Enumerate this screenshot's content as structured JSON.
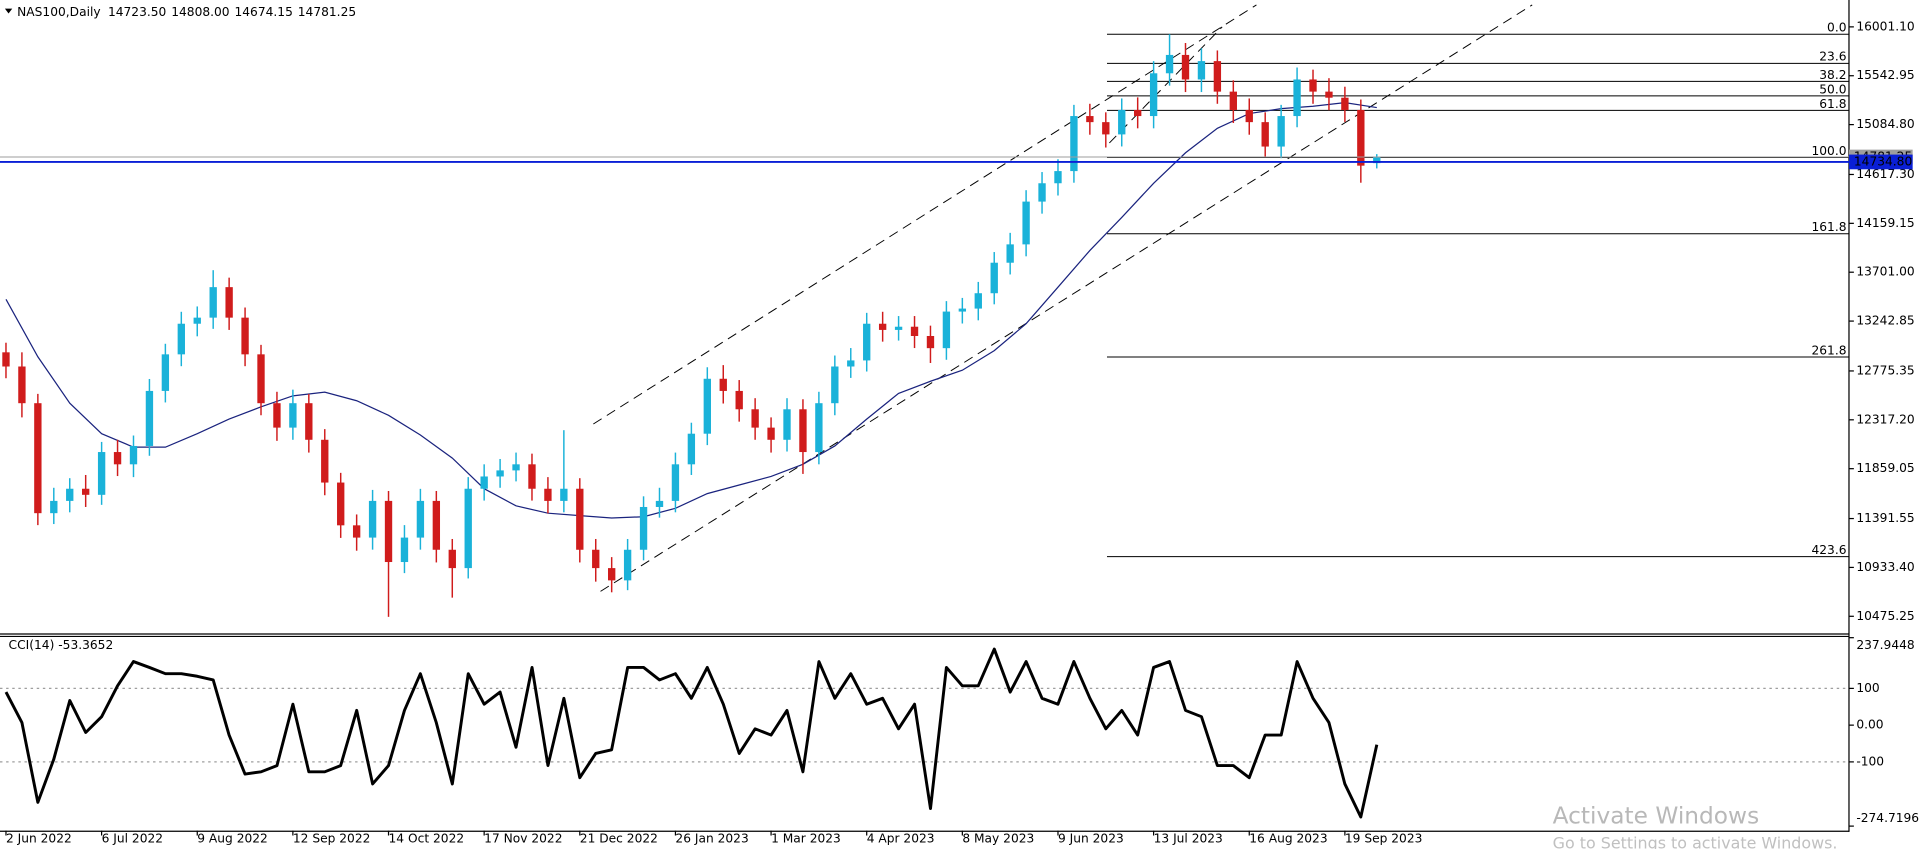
{
  "chart_data": {
    "type": "candlestick",
    "title": "NAS100,Daily",
    "header_values": [
      "14723.50",
      "14808.00",
      "14674.15",
      "14781.25"
    ],
    "x": [
      0,
      4,
      8,
      12,
      16,
      20,
      24,
      28,
      32,
      36,
      40,
      44,
      48,
      52,
      56,
      60,
      64,
      68,
      72,
      76,
      80,
      84,
      88,
      92,
      96,
      100,
      104,
      108,
      112,
      116,
      120,
      124,
      128,
      132,
      136,
      140,
      144,
      148,
      152,
      156,
      160,
      164,
      168,
      172,
      176,
      180,
      184,
      188,
      192,
      196,
      200,
      204,
      208,
      212,
      216,
      220,
      224,
      228,
      232,
      236,
      240,
      244,
      248,
      252,
      256,
      260,
      264,
      268,
      272,
      276,
      280,
      284,
      288,
      292,
      296,
      300,
      304,
      308,
      312,
      316,
      320,
      324,
      328,
      332,
      336,
      340,
      344
    ],
    "open": [
      12950,
      12817,
      12473,
      11442,
      11557,
      11671,
      11614,
      12015,
      11900,
      12072,
      12588,
      12931,
      13218,
      13275,
      13561,
      13275,
      12931,
      12473,
      12244,
      12473,
      12130,
      11729,
      11328,
      11213,
      11557,
      10984,
      11213,
      11557,
      11099,
      10927,
      11671,
      11786,
      11843,
      11900,
      11671,
      11557,
      11671,
      11099,
      10927,
      10812,
      11099,
      11500,
      11557,
      11900,
      12187,
      12702,
      12588,
      12416,
      12244,
      12130,
      12416,
      12015,
      12473,
      12817,
      12874,
      13218,
      13160,
      13190,
      13103,
      12989,
      13332,
      13360,
      13504,
      13790,
      13962,
      14363,
      14535,
      14649,
      15165,
      15108,
      14993,
      15222,
      15165,
      15566,
      15738,
      15508,
      15680,
      15394,
      15222,
      15108,
      14879,
      15165,
      15508,
      15394,
      15337,
      15222,
      14723.5
    ],
    "high": [
      13040,
      12950,
      12560,
      11680,
      11770,
      11800,
      12110,
      12130,
      12170,
      12700,
      13030,
      13330,
      13380,
      13720,
      13650,
      13370,
      13020,
      12580,
      12600,
      12560,
      12230,
      11820,
      11430,
      11660,
      11650,
      11330,
      11670,
      11650,
      11200,
      11780,
      11900,
      11950,
      12010,
      12000,
      11780,
      12220,
      11770,
      11200,
      11030,
      11200,
      11600,
      11680,
      12010,
      12290,
      12810,
      12830,
      12690,
      12520,
      12340,
      12520,
      12510,
      12580,
      12920,
      12990,
      13320,
      13330,
      13290,
      13290,
      13200,
      13430,
      13460,
      13610,
      13890,
      14070,
      14470,
      14640,
      14760,
      15270,
      15280,
      15200,
      15330,
      15340,
      15680,
      15932,
      15850,
      15800,
      15780,
      15500,
      15330,
      15200,
      15270,
      15620,
      15600,
      15520,
      15440,
      15320,
      14808
    ],
    "low": [
      12707,
      12340,
      11330,
      11340,
      11450,
      11500,
      11520,
      11790,
      11780,
      11980,
      12480,
      12820,
      13100,
      13170,
      13160,
      12820,
      12360,
      12120,
      12130,
      12010,
      11610,
      11210,
      11090,
      11100,
      10470,
      10880,
      11100,
      10980,
      10650,
      10830,
      11560,
      11680,
      11740,
      11560,
      11440,
      11450,
      10980,
      10800,
      10700,
      10720,
      11000,
      11400,
      11450,
      11800,
      12080,
      12470,
      12300,
      12130,
      12010,
      12020,
      11810,
      11900,
      12360,
      12710,
      12770,
      13050,
      13060,
      12990,
      12850,
      12880,
      13220,
      13250,
      13400,
      13680,
      13850,
      14250,
      14420,
      14540,
      14990,
      14870,
      14880,
      15050,
      15050,
      15450,
      15390,
      15390,
      15280,
      15100,
      14990,
      14776,
      14770,
      15060,
      15280,
      15220,
      15110,
      14540,
      14674.15
    ],
    "close": [
      12817,
      12473,
      11442,
      11557,
      11671,
      11614,
      12015,
      11900,
      12072,
      12588,
      12931,
      13218,
      13275,
      13561,
      13275,
      12931,
      12473,
      12244,
      12473,
      12130,
      11729,
      11328,
      11213,
      11557,
      10984,
      11213,
      11557,
      11099,
      10927,
      11671,
      11786,
      11843,
      11900,
      11671,
      11557,
      11671,
      11099,
      10927,
      10812,
      11099,
      11500,
      11557,
      11900,
      12187,
      12702,
      12588,
      12416,
      12244,
      12130,
      12416,
      12015,
      12473,
      12817,
      12874,
      13218,
      13160,
      13190,
      13103,
      12989,
      13332,
      13360,
      13504,
      13790,
      13962,
      14363,
      14535,
      14649,
      15165,
      15108,
      14993,
      15222,
      15165,
      15566,
      15738,
      15508,
      15680,
      15394,
      15222,
      15108,
      14879,
      15165,
      15508,
      15394,
      15337,
      15222,
      14700,
      14781.25
    ],
    "up_color": "#1ab2d9",
    "down_color": "#d01c1c",
    "xlim": [
      -1.5,
      462.5
    ],
    "xticks": [
      {
        "value": 0,
        "label": "2 Jun 2022"
      },
      {
        "value": 24,
        "label": "6 Jul 2022"
      },
      {
        "value": 48,
        "label": "9 Aug 2022"
      },
      {
        "value": 72,
        "label": "12 Sep 2022"
      },
      {
        "value": 96,
        "label": "14 Oct 2022"
      },
      {
        "value": 120,
        "label": "17 Nov 2022"
      },
      {
        "value": 144,
        "label": "21 Dec 2022"
      },
      {
        "value": 168,
        "label": "26 Jan 2023"
      },
      {
        "value": 192,
        "label": "1 Mar 2023"
      },
      {
        "value": 216,
        "label": "4 Apr 2023"
      },
      {
        "value": 240,
        "label": "8 May 2023"
      },
      {
        "value": 264,
        "label": "9 Jun 2023"
      },
      {
        "value": 288,
        "label": "13 Jul 2023"
      },
      {
        "value": 312,
        "label": "16 Aug 2023"
      },
      {
        "value": 336,
        "label": "19 Sep 2023"
      }
    ],
    "ylim": [
      10315,
      16253
    ],
    "yticks": [
      {
        "value": 16001.1,
        "label": "16001.10"
      },
      {
        "value": 15542.95,
        "label": "15542.95"
      },
      {
        "value": 15084.8,
        "label": "15084.80"
      },
      {
        "value": 14617.3,
        "label": "14617.30"
      },
      {
        "value": 14159.15,
        "label": "14159.15"
      },
      {
        "value": 13701,
        "label": "13701.00"
      },
      {
        "value": 13242.85,
        "label": "13242.85"
      },
      {
        "value": 12775.35,
        "label": "12775.35"
      },
      {
        "value": 12317.2,
        "label": "12317.20"
      },
      {
        "value": 11859.05,
        "label": "11859.05"
      },
      {
        "value": 11391.55,
        "label": "11391.55"
      },
      {
        "value": 10933.4,
        "label": "10933.40"
      },
      {
        "value": 10475.25,
        "label": "10475.25"
      }
    ],
    "moving_average": {
      "color": "#1a237e",
      "x": [
        0,
        8,
        16,
        24,
        32,
        40,
        48,
        56,
        64,
        72,
        80,
        88,
        96,
        104,
        112,
        120,
        128,
        136,
        144,
        152,
        160,
        168,
        176,
        184,
        192,
        200,
        208,
        216,
        224,
        232,
        240,
        248,
        256,
        264,
        272,
        280,
        288,
        296,
        304,
        312,
        320,
        328,
        336,
        344
      ],
      "values": [
        13447,
        12908,
        12473,
        12187,
        12061,
        12061,
        12187,
        12324,
        12439,
        12542,
        12576,
        12496,
        12359,
        12175,
        11958,
        11671,
        11511,
        11442,
        11419,
        11397,
        11408,
        11488,
        11626,
        11706,
        11786,
        11900,
        12072,
        12324,
        12565,
        12679,
        12782,
        12966,
        13218,
        13561,
        13905,
        14214,
        14535,
        14821,
        15050,
        15188,
        15234,
        15257,
        15291,
        15245
      ]
    },
    "trendlines": [
      {
        "x": [
          147.4,
          313.8
        ],
        "y": [
          12278,
          16207
        ]
      },
      {
        "x": [
          149.2,
          383
        ],
        "y": [
          10709,
          16207
        ]
      },
      {
        "x": [
          276.9,
          305.2
        ],
        "y": [
          14913,
          16001
        ]
      }
    ],
    "fibonacci": {
      "x": [
        276.3,
        462.5
      ],
      "levels": [
        {
          "label": "0.0",
          "value": 15932
        },
        {
          "label": "23.6",
          "value": 15659
        },
        {
          "label": "38.2",
          "value": 15490
        },
        {
          "label": "50.0",
          "value": 15354
        },
        {
          "label": "61.8",
          "value": 15218
        },
        {
          "label": "100.0",
          "value": 14776
        },
        {
          "label": "161.8",
          "value": 14062
        },
        {
          "label": "261.8",
          "value": 12906
        },
        {
          "label": "423.6",
          "value": 11035
        }
      ]
    },
    "price_lines": [
      {
        "value": 14781.25,
        "label": "14781.25",
        "color": "#9e9e9e"
      },
      {
        "value": 14734.8,
        "label": "14734.80",
        "color": "#0a1fd6"
      }
    ],
    "indicator": {
      "type": "line",
      "title": "CCI(14) -53.3652",
      "color": "#000000",
      "values": [
        90,
        7,
        -210,
        -93,
        67,
        -20,
        23,
        107,
        173,
        157,
        140,
        140,
        133,
        123,
        -27,
        -133,
        -127,
        -110,
        57,
        -127,
        -127,
        -110,
        40,
        -160,
        -110,
        40,
        140,
        7,
        -160,
        140,
        57,
        90,
        -60,
        157,
        -110,
        73,
        -143,
        -77,
        -67,
        157,
        157,
        123,
        140,
        73,
        157,
        57,
        -77,
        -10,
        -27,
        40,
        -127,
        173,
        73,
        140,
        57,
        73,
        -10,
        57,
        -227,
        157,
        107,
        107,
        207,
        90,
        173,
        73,
        57,
        173,
        73,
        -10,
        40,
        -27,
        157,
        173,
        40,
        23,
        -110,
        -110,
        -143,
        -27,
        -27,
        173,
        73,
        7,
        -160,
        -250,
        -53.3652
      ],
      "ylim": [
        -287,
        243
      ],
      "yticks": [
        237.9448,
        100,
        {
          "value": 0,
          "label": "0.00"
        },
        -100,
        -274.7196
      ],
      "levels": [
        100,
        -100
      ]
    }
  },
  "watermark": {
    "line1": "Activate Windows",
    "line2": "Go to Settings to activate Windows."
  }
}
